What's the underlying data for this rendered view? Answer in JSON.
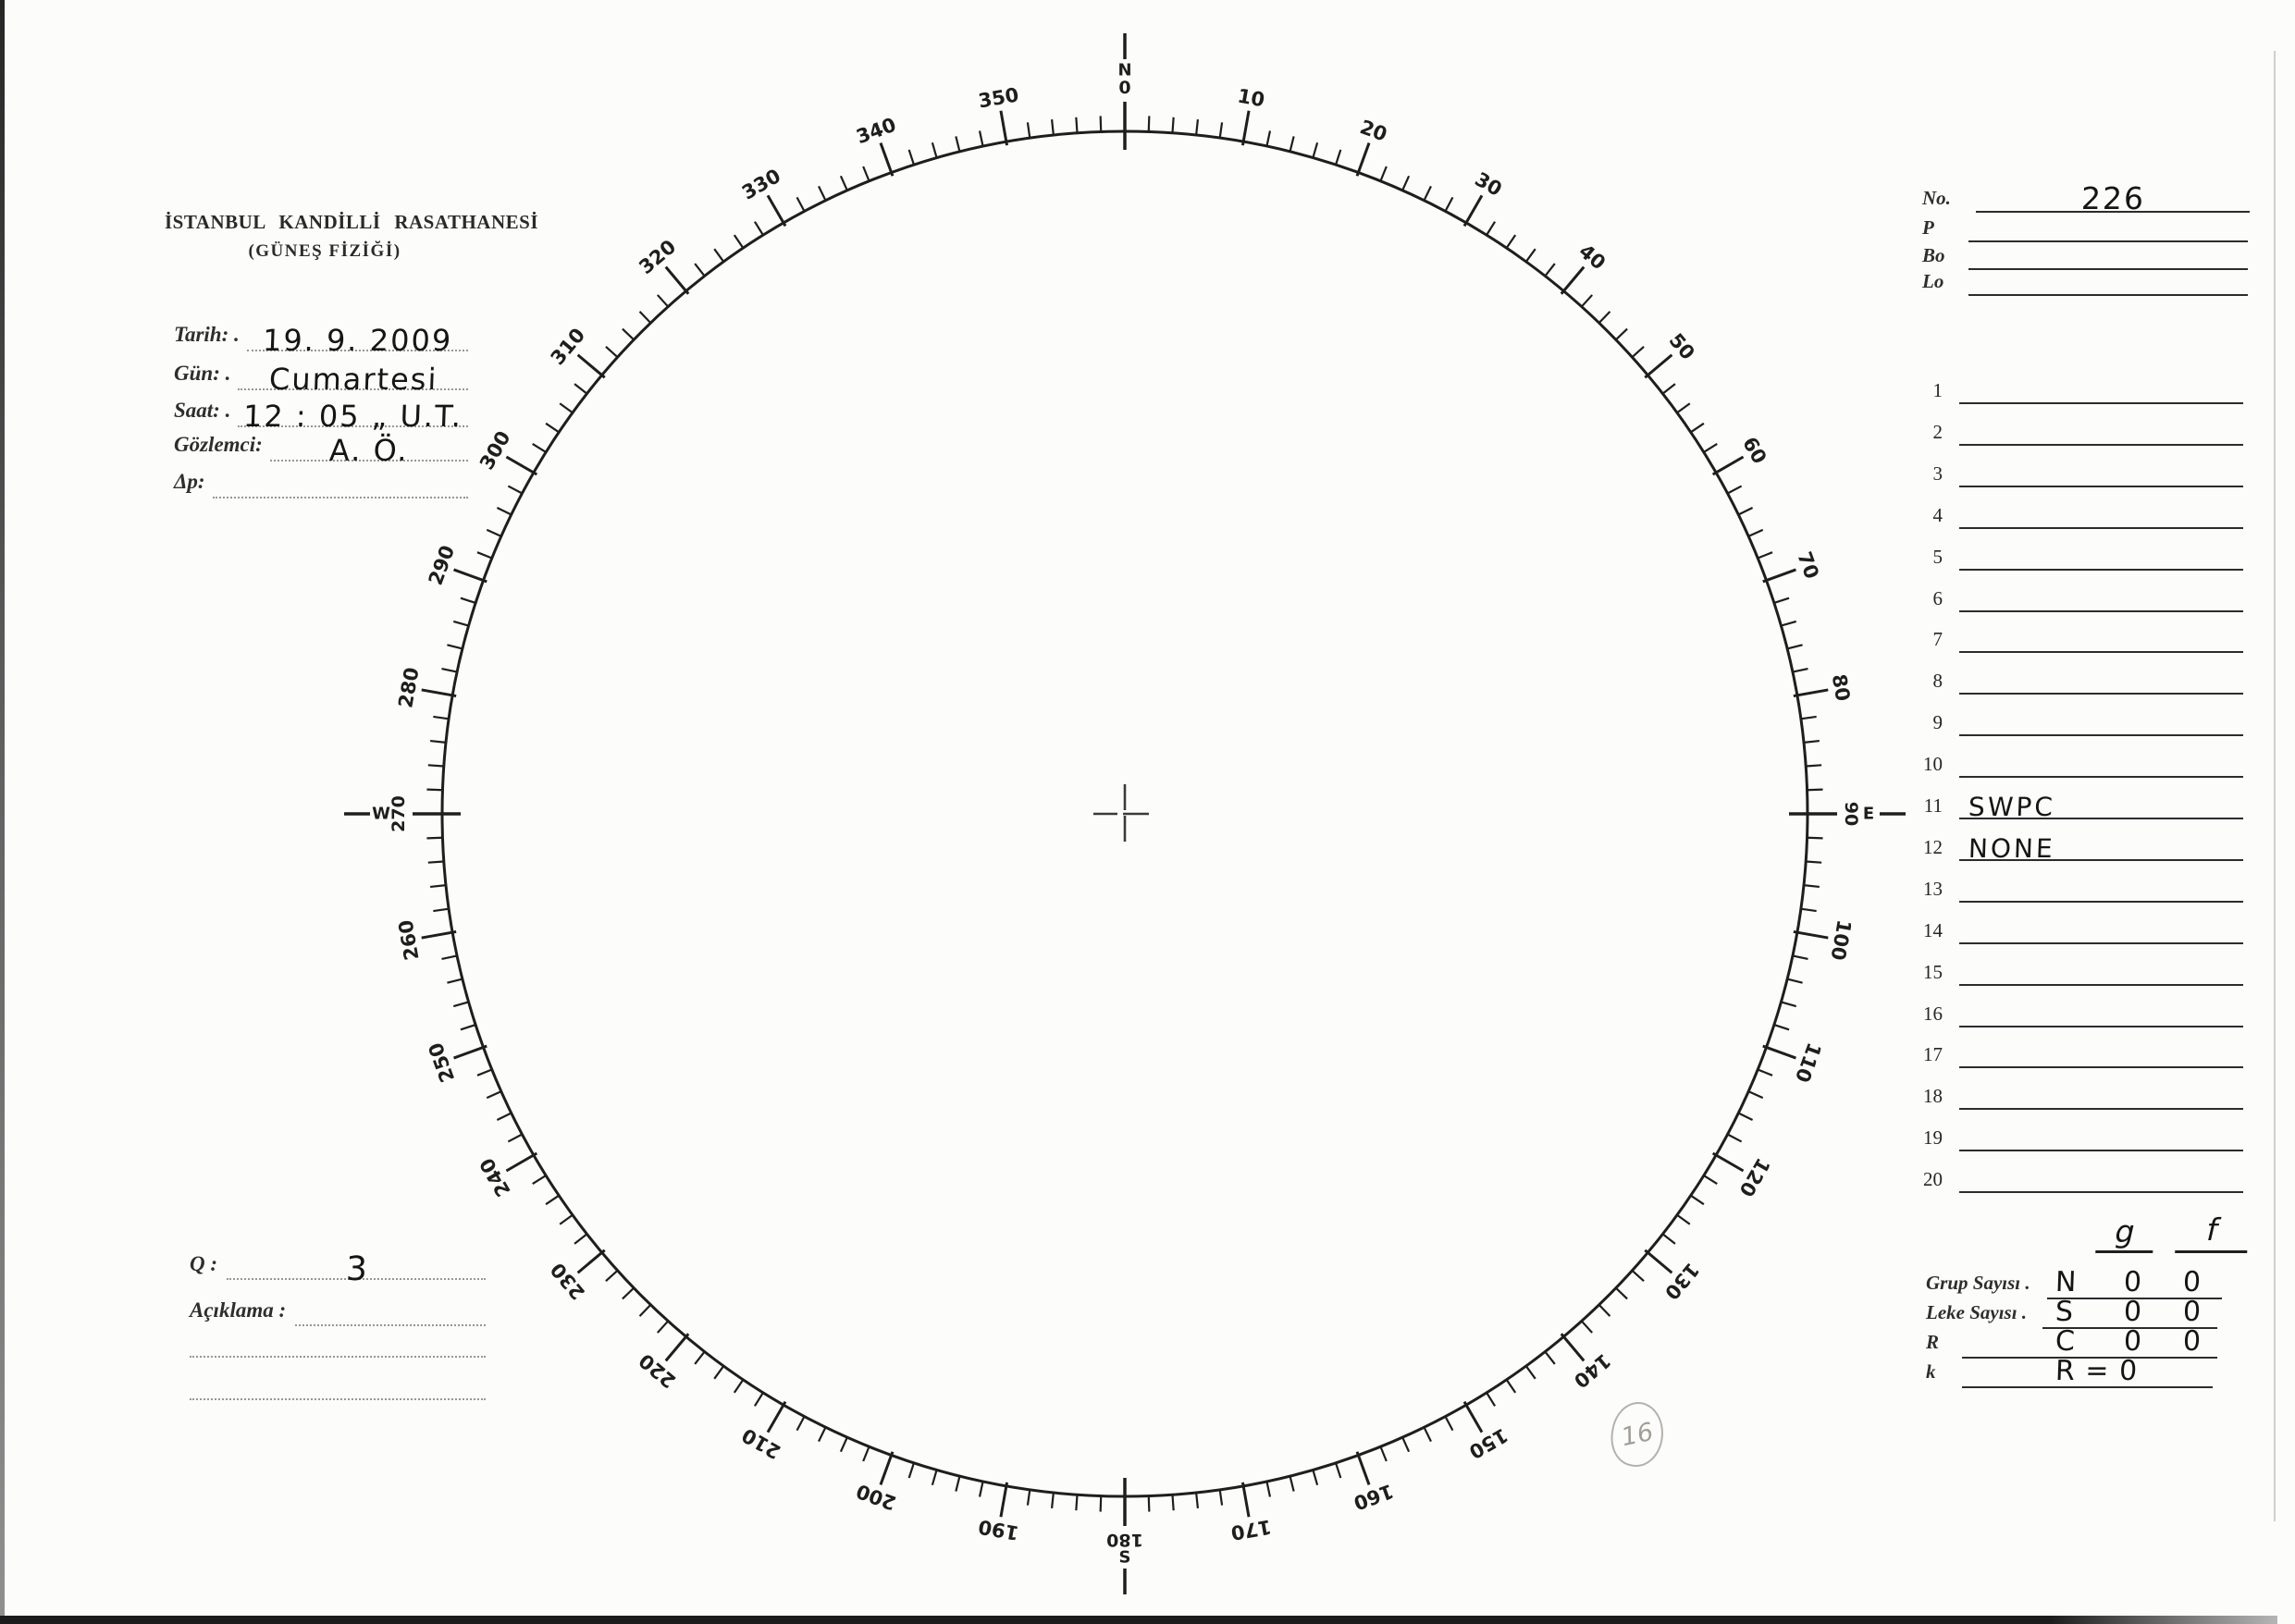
{
  "meta": {
    "paper_color": "#fcfcfa",
    "ink_color": "#1e1e1e",
    "pencil_color": "#a8a5a0"
  },
  "document": {
    "institution_line1": "İSTANBUL KANDİLLİ RASATHANESİ",
    "institution_line2": "(GÜNEŞ FİZİĞİ)"
  },
  "fields": {
    "items": [
      {
        "label": "Tarih: .",
        "value": "19. 9. 2009"
      },
      {
        "label": "Gün: .",
        "value": "Cumartesi"
      },
      {
        "label": "Saat: .",
        "value": "12 : 05 „ U.T."
      },
      {
        "label": "Gözlemci:",
        "value": "A. Ö."
      },
      {
        "label": "Δp:",
        "value": ""
      }
    ]
  },
  "quality": {
    "label": "Q :",
    "value": "3"
  },
  "remarks": {
    "label": "Açıklama :",
    "value": ""
  },
  "right_panel": {
    "no": {
      "label": "No.",
      "value": "226"
    },
    "params": [
      {
        "label": "P",
        "value": ""
      },
      {
        "label": "Bo",
        "value": ""
      },
      {
        "label": "Lo",
        "value": ""
      }
    ],
    "rows": [
      {
        "num": "1",
        "value": ""
      },
      {
        "num": "2",
        "value": ""
      },
      {
        "num": "3",
        "value": ""
      },
      {
        "num": "4",
        "value": ""
      },
      {
        "num": "5",
        "value": ""
      },
      {
        "num": "6",
        "value": ""
      },
      {
        "num": "7",
        "value": ""
      },
      {
        "num": "8",
        "value": ""
      },
      {
        "num": "9",
        "value": ""
      },
      {
        "num": "10",
        "value": ""
      },
      {
        "num": "11",
        "value": "SWPC"
      },
      {
        "num": "12",
        "value": "NONE"
      },
      {
        "num": "13",
        "value": ""
      },
      {
        "num": "14",
        "value": ""
      },
      {
        "num": "15",
        "value": ""
      },
      {
        "num": "16",
        "value": ""
      },
      {
        "num": "17",
        "value": ""
      },
      {
        "num": "18",
        "value": ""
      },
      {
        "num": "19",
        "value": ""
      },
      {
        "num": "20",
        "value": ""
      }
    ]
  },
  "summary": {
    "columns": [
      "g",
      "f"
    ],
    "rows": [
      {
        "label": "Grup Sayısı .",
        "cells": [
          "N",
          "0",
          "0"
        ]
      },
      {
        "label": "Leke Sayısı .",
        "cells": [
          "S",
          "0",
          "0"
        ]
      },
      {
        "label": "R",
        "cells": [
          "C",
          "0",
          "0"
        ]
      },
      {
        "label": "k",
        "cells": [
          "R = 0"
        ]
      }
    ]
  },
  "pencil_note": {
    "value": "16"
  },
  "dial": {
    "type": "compass-protractor-scale",
    "degree_min": 0,
    "degree_max": 360,
    "minor_step_deg": 2,
    "major_step_deg": 10,
    "direction": "clockwise-from-north",
    "major_labels": [
      "10",
      "20",
      "30",
      "40",
      "50",
      "60",
      "70",
      "80",
      "100",
      "110",
      "120",
      "130",
      "140",
      "150",
      "160",
      "170",
      "190",
      "200",
      "210",
      "220",
      "230",
      "240",
      "250",
      "260",
      "280",
      "290",
      "300",
      "310",
      "320",
      "330",
      "340",
      "350"
    ],
    "cardinals": [
      {
        "deg": 0,
        "letter": "N",
        "number": "0"
      },
      {
        "deg": 90,
        "letter": "E",
        "number": "90"
      },
      {
        "deg": 180,
        "letter": "S",
        "number": "180"
      },
      {
        "deg": 270,
        "letter": "W",
        "number": "270"
      }
    ]
  }
}
